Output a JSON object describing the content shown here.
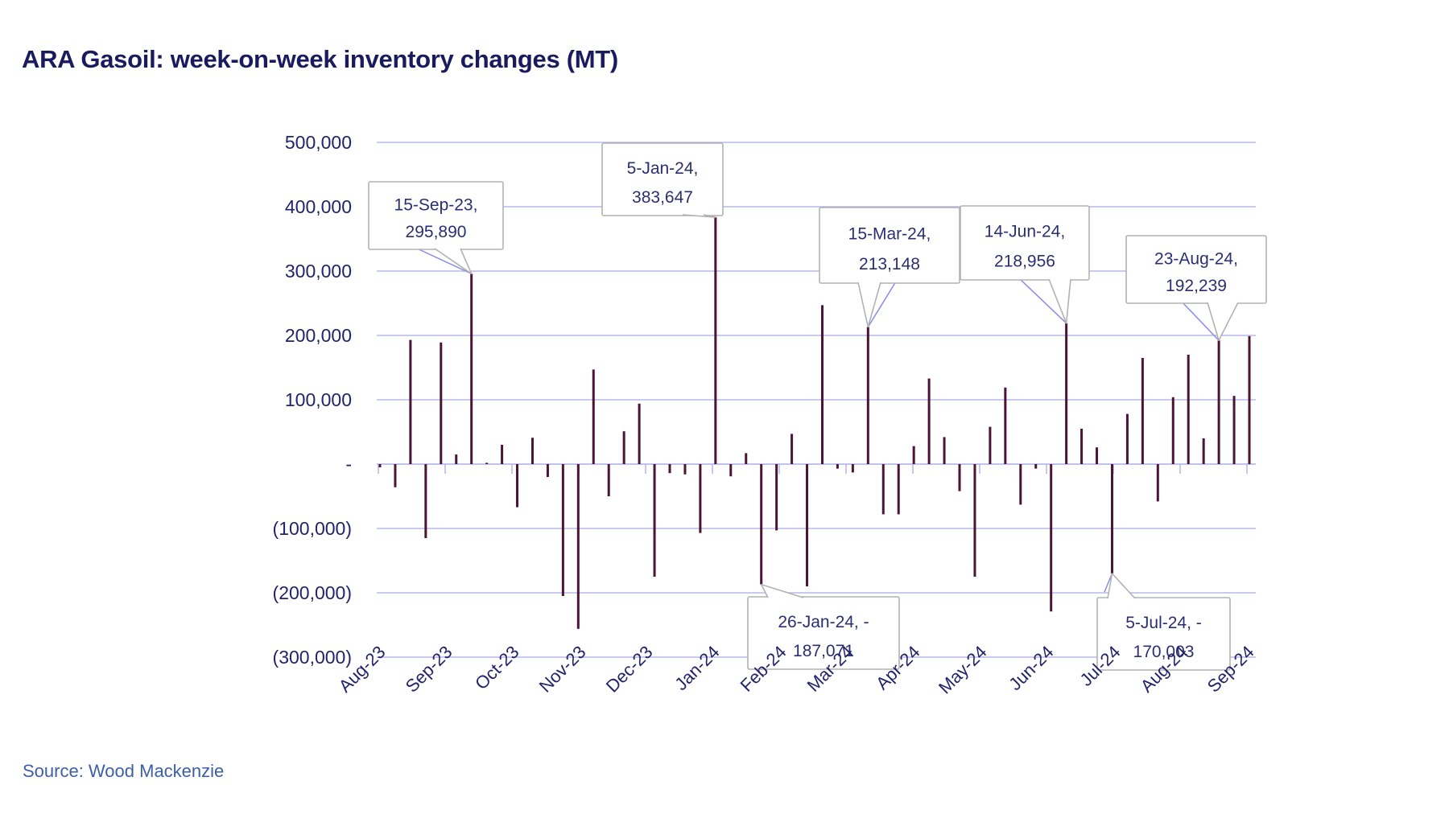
{
  "title": "ARA Gasoil: week-on-week inventory changes (MT)",
  "source": {
    "text": "Source: Wood Mackenzie"
  },
  "chart_data": {
    "type": "bar",
    "title": "ARA Gasoil: week-on-week inventory changes (MT)",
    "unit": "MT",
    "grid": true,
    "ylim": [
      -300000,
      500000
    ],
    "y_ticks": {
      "labels": [
        "500,000",
        "400,000",
        "300,000",
        "200,000",
        "100,000",
        "-",
        "(100,000)",
        "(200,000)",
        "(300,000)"
      ],
      "values": [
        500000,
        400000,
        300000,
        200000,
        100000,
        0,
        -100000,
        -200000,
        -300000
      ]
    },
    "x_month_labels": [
      "Aug-23",
      "Sep-23",
      "Oct-23",
      "Nov-23",
      "Dec-23",
      "Jan-24",
      "Feb-24",
      "Mar-24",
      "Apr-24",
      "May-24",
      "Jun-24",
      "Jul-24",
      "Aug-24",
      "Sep-24"
    ],
    "x": [
      "4-Aug-23",
      "11-Aug-23",
      "18-Aug-23",
      "25-Aug-23",
      "1-Sep-23",
      "8-Sep-23",
      "15-Sep-23",
      "22-Sep-23",
      "29-Sep-23",
      "6-Oct-23",
      "13-Oct-23",
      "20-Oct-23",
      "27-Oct-23",
      "3-Nov-23",
      "10-Nov-23",
      "17-Nov-23",
      "24-Nov-23",
      "1-Dec-23",
      "8-Dec-23",
      "15-Dec-23",
      "22-Dec-23",
      "29-Dec-23",
      "5-Jan-24",
      "12-Jan-24",
      "19-Jan-24",
      "26-Jan-24",
      "2-Feb-24",
      "9-Feb-24",
      "16-Feb-24",
      "23-Feb-24",
      "1-Mar-24",
      "8-Mar-24",
      "15-Mar-24",
      "22-Mar-24",
      "29-Mar-24",
      "5-Apr-24",
      "12-Apr-24",
      "19-Apr-24",
      "26-Apr-24",
      "3-May-24",
      "10-May-24",
      "17-May-24",
      "24-May-24",
      "31-May-24",
      "7-Jun-24",
      "14-Jun-24",
      "21-Jun-24",
      "28-Jun-24",
      "5-Jul-24",
      "12-Jul-24",
      "19-Jul-24",
      "26-Jul-24",
      "2-Aug-24",
      "9-Aug-24",
      "16-Aug-24",
      "23-Aug-24",
      "30-Aug-24",
      "6-Sep-24"
    ],
    "values": [
      -5000,
      -36000,
      193000,
      -115000,
      189000,
      15000,
      295890,
      2000,
      30000,
      -67000,
      41000,
      -20000,
      -205000,
      -256000,
      147000,
      -50000,
      51000,
      94000,
      -175000,
      -14000,
      -16000,
      -107000,
      383647,
      -19000,
      17000,
      -187071,
      -103000,
      47000,
      -190000,
      247000,
      -7000,
      -13000,
      213148,
      -78000,
      -78000,
      28000,
      133000,
      42000,
      -42000,
      -175000,
      58000,
      119000,
      -63000,
      -7000,
      -229000,
      218956,
      55000,
      26000,
      -170003,
      78000,
      165000,
      -58000,
      104000,
      170000,
      40000,
      192239,
      106000,
      199000
    ],
    "annotations": [
      {
        "index": 6,
        "date": "15-Sep-23",
        "value": 295890,
        "lines": [
          "15-Sep-23,",
          "295,890"
        ]
      },
      {
        "index": 22,
        "date": "5-Jan-24",
        "value": 383647,
        "lines": [
          "5-Jan-24,",
          "383,647"
        ]
      },
      {
        "index": 32,
        "date": "15-Mar-24",
        "value": 213148,
        "lines": [
          "15-Mar-24,",
          "213,148"
        ]
      },
      {
        "index": 45,
        "date": "14-Jun-24",
        "value": 218956,
        "lines": [
          "14-Jun-24,",
          "218,956"
        ]
      },
      {
        "index": 55,
        "date": "23-Aug-24",
        "value": 192239,
        "lines": [
          "23-Aug-24,",
          "192,239"
        ]
      },
      {
        "index": 25,
        "date": "26-Jan-24",
        "value": -187071,
        "lines": [
          "26-Jan-24, -",
          "187,071"
        ]
      },
      {
        "index": 48,
        "date": "5-Jul-24",
        "value": -170003,
        "lines": [
          "5-Jul-24, -",
          "170,003"
        ]
      }
    ],
    "colors": {
      "bar": "#4b1535",
      "gridline": "#b9b9ec",
      "axis_label": "#23236b",
      "callout_fill": "#ffffff",
      "callout_border": "#b2b2b0",
      "callout_text": "#2b2f72",
      "leader_line": "#8a8aea",
      "title": "#1a1a5f",
      "source": "#3c5fa6"
    },
    "legend": null
  }
}
